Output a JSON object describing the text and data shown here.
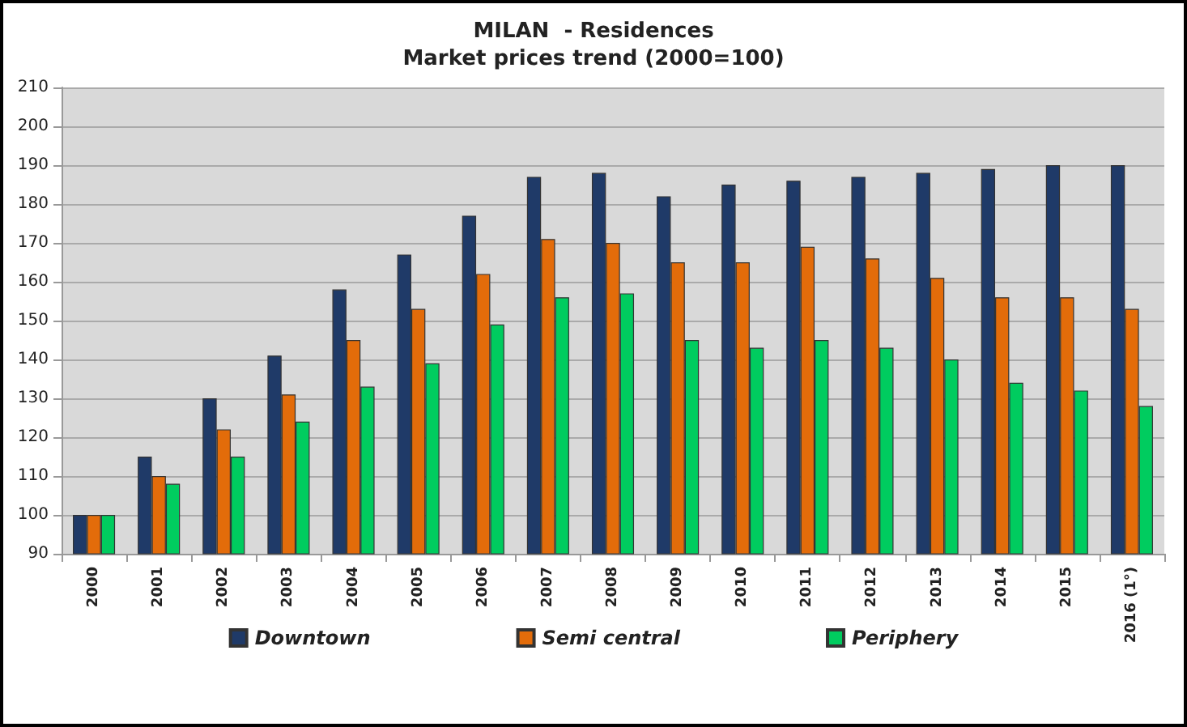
{
  "chart_data": {
    "type": "bar",
    "title": "MILAN  - Residences",
    "subtitle": "Market prices trend (2000=100)",
    "categories": [
      "2000",
      "2001",
      "2002",
      "2003",
      "2004",
      "2005",
      "2006",
      "2007",
      "2008",
      "2009",
      "2010",
      "2011",
      "2012",
      "2013",
      "2014",
      "2015",
      "2016 (1°)"
    ],
    "series": [
      {
        "name": "Downtown",
        "color": "#1f3a68",
        "values": [
          100,
          115,
          130,
          141,
          158,
          167,
          177,
          187,
          188,
          182,
          185,
          186,
          187,
          188,
          189,
          190,
          190
        ]
      },
      {
        "name": "Semi central",
        "color": "#e36c0a",
        "values": [
          100,
          110,
          122,
          131,
          145,
          153,
          162,
          171,
          170,
          165,
          165,
          169,
          166,
          161,
          156,
          156,
          153
        ]
      },
      {
        "name": "Periphery",
        "color": "#00cc5f",
        "values": [
          100,
          108,
          115,
          124,
          133,
          139,
          149,
          156,
          157,
          145,
          143,
          145,
          143,
          140,
          134,
          132,
          128
        ]
      }
    ],
    "ylim": [
      90,
      210
    ],
    "yticks": [
      90,
      100,
      110,
      120,
      130,
      140,
      150,
      160,
      170,
      180,
      190,
      200,
      210
    ],
    "grid": "y",
    "legend": "bottom"
  }
}
